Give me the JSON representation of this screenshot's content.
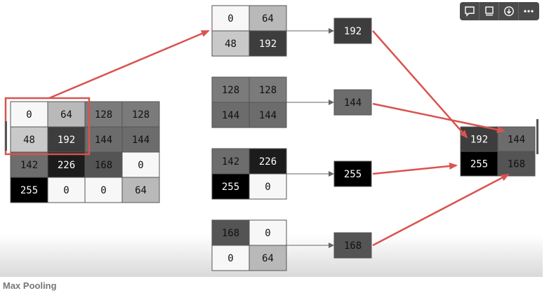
{
  "caption": "Max Pooling",
  "toolbar": {
    "buttons": [
      {
        "name": "comment-icon"
      },
      {
        "name": "info-panel-icon"
      },
      {
        "name": "download-icon"
      },
      {
        "name": "more-icon"
      }
    ]
  },
  "colors": {
    "arrow": "#d9534f",
    "highlight": "#d9534f",
    "grid_border": "#555555"
  },
  "input_matrix": [
    [
      0,
      64,
      128,
      128
    ],
    [
      48,
      192,
      144,
      144
    ],
    [
      142,
      226,
      168,
      0
    ],
    [
      255,
      0,
      0,
      64
    ]
  ],
  "pooling_windows": [
    {
      "cells": [
        [
          0,
          64
        ],
        [
          48,
          192
        ]
      ],
      "max": 192
    },
    {
      "cells": [
        [
          128,
          128
        ],
        [
          144,
          144
        ]
      ],
      "max": 144
    },
    {
      "cells": [
        [
          142,
          226
        ],
        [
          255,
          0
        ]
      ],
      "max": 255
    },
    {
      "cells": [
        [
          168,
          0
        ],
        [
          0,
          64
        ]
      ],
      "max": 168
    }
  ],
  "output_matrix": [
    [
      192,
      144
    ],
    [
      255,
      168
    ]
  ]
}
